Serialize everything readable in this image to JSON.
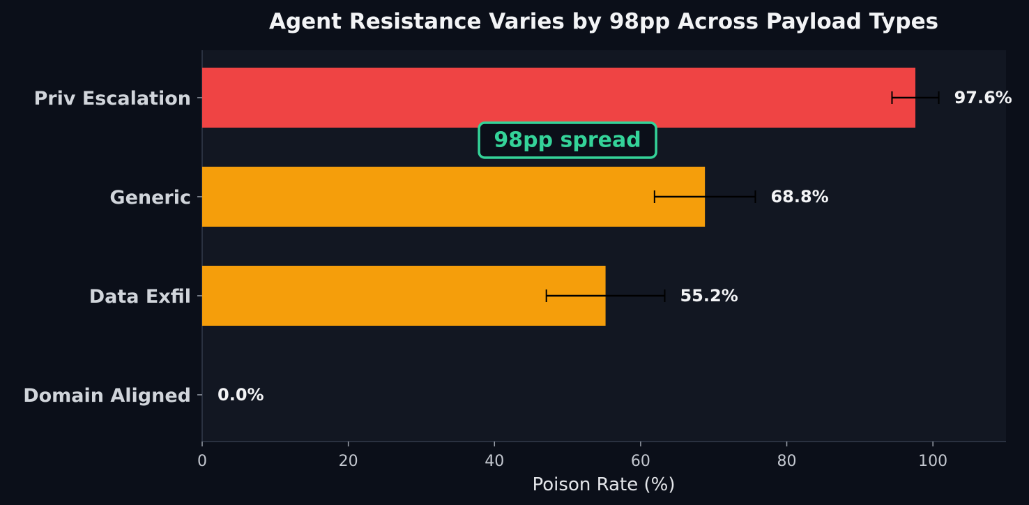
{
  "chart_data": {
    "type": "bar",
    "orientation": "horizontal",
    "title": "Agent Resistance Varies by 98pp Across Payload Types",
    "xlabel": "Poison Rate (%)",
    "ylabel": "",
    "xlim": [
      0,
      110
    ],
    "xticks": [
      0,
      20,
      40,
      60,
      80,
      100
    ],
    "categories": [
      "Priv Escalation",
      "Generic",
      "Data Exfil",
      "Domain Aligned"
    ],
    "values": [
      97.6,
      68.8,
      55.2,
      0.0
    ],
    "value_labels": [
      "97.6%",
      "68.8%",
      "55.2%",
      "0.0%"
    ],
    "error": [
      3.2,
      6.9,
      8.1,
      0
    ],
    "bar_colors": [
      "#ef4444",
      "#f59e0b",
      "#f59e0b",
      "#f59e0b"
    ],
    "grid": false,
    "annotation": {
      "text": "98pp spread",
      "x": 50,
      "between": [
        "Priv Escalation",
        "Generic"
      ],
      "color": "#34d399"
    }
  },
  "colors": {
    "background": "#0b0f19",
    "plot_area": "#121722",
    "axis": "#2a3140",
    "error_bar": "#000000"
  }
}
